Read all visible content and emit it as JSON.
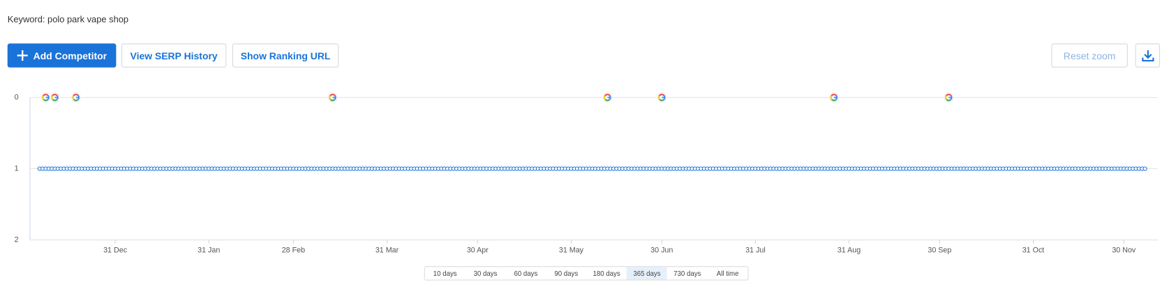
{
  "header": {
    "keyword": "Keyword: polo park vape shop"
  },
  "toolbar": {
    "add_competitor": "Add Competitor",
    "serp_history": "View SERP History",
    "ranking_url": "Show Ranking URL",
    "reset_zoom": "Reset zoom"
  },
  "chart_data": {
    "type": "line",
    "series": [
      {
        "name": "polo park vape shop",
        "color": "#1a73d9",
        "values": [
          1,
          1,
          1,
          1,
          1,
          1,
          1,
          1,
          1,
          1,
          1,
          1,
          1,
          1,
          1,
          1,
          1,
          1,
          1,
          1,
          1,
          1,
          1,
          1,
          1,
          1,
          1,
          1,
          1,
          1,
          1,
          1,
          1,
          1,
          1,
          1,
          1,
          1,
          1,
          1,
          1,
          1,
          1,
          1,
          1,
          1,
          1,
          1,
          1,
          1,
          1,
          1,
          1,
          1,
          1,
          1,
          1,
          1,
          1,
          1,
          1,
          1,
          1,
          1,
          1,
          1,
          1,
          1,
          1,
          1,
          1,
          1,
          1,
          1,
          1,
          1,
          1,
          1,
          1,
          1,
          1,
          1,
          1,
          1,
          1,
          1,
          1,
          1,
          1,
          1,
          1,
          1,
          1,
          1,
          1,
          1,
          1,
          1,
          1,
          1,
          1,
          1,
          1,
          1,
          1,
          1,
          1,
          1,
          1,
          1,
          1,
          1,
          1,
          1,
          1,
          1,
          1,
          1,
          1,
          1,
          1,
          1,
          1,
          1,
          1,
          1,
          1,
          1,
          1,
          1,
          1,
          1,
          1,
          1,
          1,
          1,
          1,
          1,
          1,
          1,
          1,
          1,
          1,
          1,
          1,
          1,
          1,
          1,
          1,
          1,
          1,
          1,
          1,
          1,
          1,
          1,
          1,
          1,
          1,
          1,
          1,
          1,
          1,
          1,
          1,
          1,
          1,
          1,
          1,
          1,
          1,
          1,
          1,
          1,
          1,
          1,
          1,
          1,
          1,
          1,
          1,
          1,
          1,
          1,
          1,
          1,
          1,
          1,
          1,
          1,
          1,
          1,
          1,
          1,
          1,
          1,
          1,
          1,
          1,
          1,
          1,
          1,
          1,
          1,
          1,
          1,
          1,
          1,
          1,
          1,
          1,
          1,
          1,
          1,
          1,
          1,
          1,
          1,
          1,
          1,
          1,
          1,
          1,
          1,
          1,
          1,
          1,
          1,
          1,
          1,
          1,
          1,
          1,
          1,
          1,
          1,
          1,
          1,
          1,
          1,
          1,
          1,
          1,
          1,
          1,
          1,
          1,
          1,
          1,
          1,
          1,
          1,
          1,
          1,
          1,
          1,
          1,
          1,
          1,
          1,
          1,
          1,
          1,
          1,
          1,
          1,
          1,
          1,
          1,
          1,
          1,
          1,
          1,
          1,
          1,
          1,
          1,
          1,
          1,
          1,
          1,
          1,
          1,
          1,
          1,
          1,
          1,
          1,
          1,
          1,
          1,
          1,
          1,
          1,
          1,
          1,
          1,
          1,
          1,
          1,
          1,
          1,
          1,
          1,
          1,
          1,
          1,
          1,
          1,
          1,
          1,
          1,
          1,
          1,
          1,
          1,
          1,
          1,
          1,
          1,
          1,
          1,
          1,
          1,
          1,
          1,
          1,
          1,
          1,
          1,
          1,
          1,
          1,
          1,
          1,
          1,
          1,
          1,
          1,
          1,
          1,
          1,
          1,
          1,
          1,
          1,
          1,
          1,
          1,
          1,
          1,
          1,
          1,
          1,
          1,
          1,
          1,
          1,
          1,
          1,
          1,
          1,
          1,
          1,
          1,
          1,
          1
        ]
      }
    ],
    "categories": [
      null,
      null,
      null,
      null,
      null,
      null,
      null,
      null,
      null,
      null,
      null,
      null,
      null,
      null,
      null,
      null,
      null,
      null,
      null,
      null,
      null,
      null,
      null,
      null,
      null,
      null,
      null,
      null,
      null,
      null,
      null,
      null,
      null,
      null,
      null,
      null,
      null,
      null,
      null,
      null,
      null,
      null,
      null,
      null,
      null,
      null,
      null,
      null,
      null,
      null,
      null,
      null,
      null,
      null,
      null,
      null,
      null,
      null,
      null,
      null,
      null,
      null,
      null,
      null,
      null,
      null,
      null,
      null,
      null,
      null,
      null,
      null,
      null,
      null,
      null,
      null,
      null,
      null,
      null,
      null,
      null,
      null,
      null,
      null,
      null,
      null,
      null,
      null,
      null,
      null,
      null,
      null,
      null,
      null,
      null,
      null,
      null,
      null,
      null,
      null,
      null,
      null,
      null,
      null,
      null,
      null,
      null,
      null,
      null,
      null,
      null,
      null,
      null,
      null,
      null,
      null,
      null,
      null,
      null,
      null,
      null,
      null,
      null,
      null,
      null,
      null,
      null,
      null,
      null,
      null,
      null,
      null,
      null,
      null,
      null,
      null,
      null,
      null,
      null,
      null,
      null,
      null,
      null,
      null,
      null,
      null,
      null,
      null,
      null,
      null,
      null,
      null,
      null,
      null,
      null,
      null,
      null,
      null,
      null,
      null,
      null,
      null,
      null,
      null,
      null,
      null,
      null,
      null,
      null,
      null,
      null,
      null,
      null,
      null,
      null,
      null,
      null,
      null,
      null,
      null,
      null,
      null,
      null,
      null,
      null,
      null,
      null,
      null,
      null,
      null,
      null,
      null,
      null,
      null,
      null,
      null,
      null,
      null,
      null,
      null,
      null,
      null,
      null,
      null,
      null,
      null,
      null,
      null,
      null,
      null,
      null,
      null,
      null,
      null,
      null,
      null,
      null,
      null,
      null,
      null,
      null,
      null,
      null,
      null,
      null,
      null,
      null,
      null,
      null,
      null,
      null,
      null,
      null,
      null,
      null,
      null,
      null,
      null,
      null,
      null,
      null,
      null,
      null,
      null,
      null,
      null,
      null,
      null,
      null,
      null,
      null,
      null,
      null,
      null,
      null,
      null,
      null,
      null,
      null,
      null,
      null,
      null,
      null,
      null,
      null,
      null,
      null,
      null,
      null,
      null,
      null,
      null,
      null,
      null,
      null,
      null,
      null,
      null,
      null,
      null,
      null,
      null,
      null,
      null,
      null,
      null,
      null,
      null,
      null,
      null,
      null,
      null,
      null,
      null,
      null,
      null,
      null,
      null,
      null,
      null,
      null,
      null,
      null,
      null,
      null,
      null,
      null,
      null,
      null,
      null,
      null,
      null,
      null,
      null,
      null,
      null,
      null,
      null,
      null,
      null,
      null,
      null,
      null,
      null,
      null,
      null,
      null,
      null,
      null,
      null,
      null,
      null,
      null,
      null,
      null,
      null,
      null,
      null,
      null,
      null,
      null,
      null,
      null,
      null,
      null,
      null,
      null,
      null,
      null,
      null,
      null,
      null,
      null,
      null,
      null,
      null,
      null,
      null,
      null,
      null,
      null,
      null,
      null,
      null,
      null,
      null,
      null
    ],
    "ylim": [
      2,
      0
    ],
    "yticks": [
      0,
      1,
      2
    ],
    "xticks": [
      {
        "value": 25,
        "label": "31 Dec"
      },
      {
        "value": 56,
        "label": "31 Jan"
      },
      {
        "value": 84,
        "label": "28 Feb"
      },
      {
        "value": 115,
        "label": "31 Mar"
      },
      {
        "value": 145,
        "label": "30 Apr"
      },
      {
        "value": 176,
        "label": "31 May"
      },
      {
        "value": 206,
        "label": "30 Jun"
      },
      {
        "value": 237,
        "label": "31 Jul"
      },
      {
        "value": 268,
        "label": "31 Aug"
      },
      {
        "value": 298,
        "label": "30 Sep"
      },
      {
        "value": 329,
        "label": "31 Oct"
      },
      {
        "value": 359,
        "label": "30 Nov"
      }
    ],
    "google_events": [
      2,
      5,
      12,
      97,
      188,
      206,
      263,
      301
    ],
    "grid": true
  },
  "range_selector": {
    "options": [
      "10 days",
      "30 days",
      "60 days",
      "90 days",
      "180 days",
      "365 days",
      "730 days",
      "All time"
    ],
    "selected": 5
  }
}
